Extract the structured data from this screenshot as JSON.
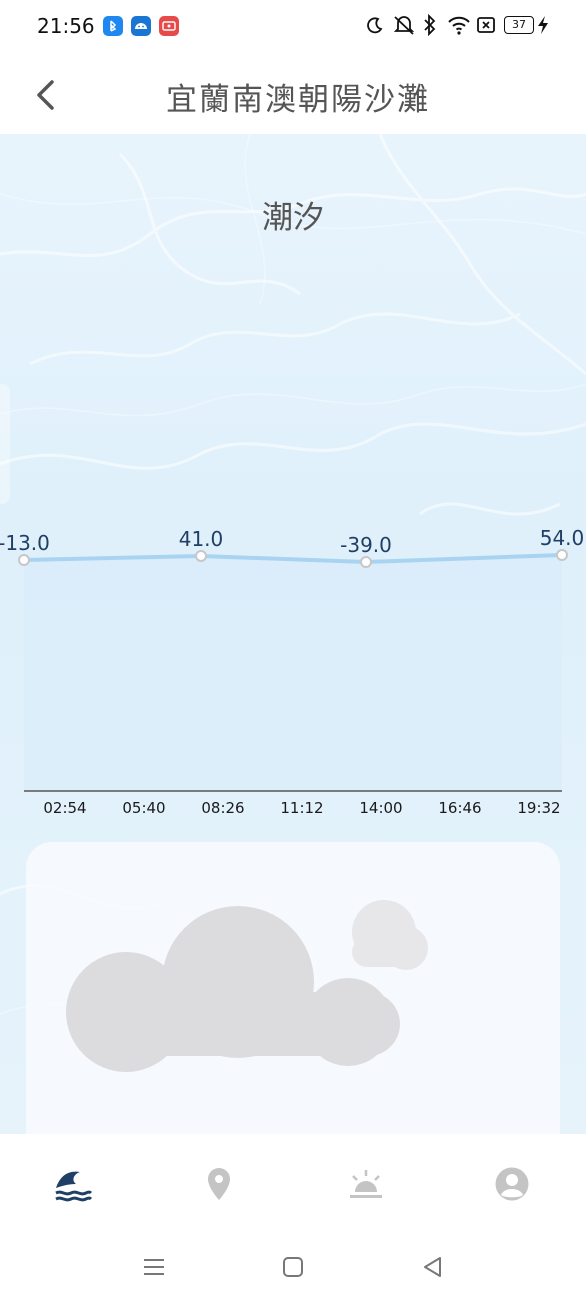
{
  "status_bar": {
    "time": "21:56",
    "battery": "37",
    "app_icons": [
      "bluetooth-app-icon",
      "android-app-icon",
      "screen-record-icon"
    ],
    "system_icons": [
      "moon-icon",
      "mute-icon",
      "bluetooth-icon",
      "wifi-icon",
      "no-sim-icon",
      "battery-icon",
      "charging-icon"
    ]
  },
  "header": {
    "title": "宜蘭南澳朝陽沙灘",
    "back_icon": "chevron-left-icon"
  },
  "main": {
    "section_title": "潮汐"
  },
  "chart_data": {
    "type": "line",
    "points": [
      {
        "label": "-13.0",
        "value": -13.0
      },
      {
        "label": "41.0",
        "value": 41.0
      },
      {
        "label": "-39.0",
        "value": -39.0
      },
      {
        "label": "54.0",
        "value": 54.0
      }
    ],
    "x_ticks": [
      "02:54",
      "05:40",
      "08:26",
      "11:12",
      "14:00",
      "16:46",
      "19:32"
    ],
    "line_color": "#a8d4f2",
    "fill_color": "#d9ecfa"
  },
  "weather_card": {
    "icon": "cloud-icon"
  },
  "bottom_nav": {
    "items": [
      {
        "icon": "wave-icon",
        "active": true
      },
      {
        "icon": "location-pin-icon",
        "active": false
      },
      {
        "icon": "sunrise-icon",
        "active": false
      },
      {
        "icon": "user-profile-icon",
        "active": false
      }
    ],
    "active_color": "#1f3f66",
    "inactive_color": "#c4c4c4"
  },
  "system_nav": [
    "menu-icon",
    "home-icon",
    "back-triangle-icon"
  ]
}
